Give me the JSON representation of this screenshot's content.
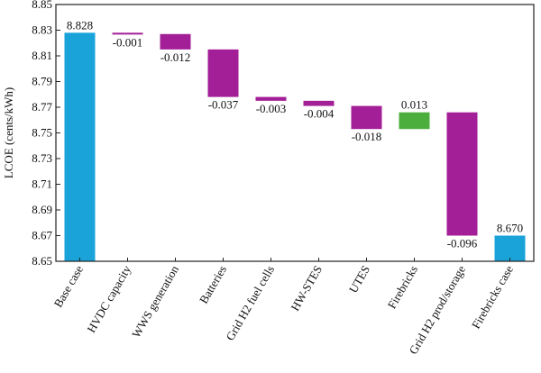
{
  "chart_data": {
    "type": "waterfall",
    "ylabel": "LCOE (cents/kWh)",
    "ylim": [
      8.65,
      8.85
    ],
    "yticks": [
      8.65,
      8.67,
      8.69,
      8.71,
      8.73,
      8.75,
      8.77,
      8.79,
      8.81,
      8.83,
      8.85
    ],
    "categories": [
      "Base case",
      "HVDC capacity",
      "WWS generation",
      "Batteries",
      "Grid H2 fuel cells",
      "HW-STES",
      "UTES",
      "Firebricks",
      "Grid H2 prod/storage",
      "Firebricks case"
    ],
    "values": [
      8.828,
      -0.001,
      -0.012,
      -0.037,
      -0.003,
      -0.004,
      -0.018,
      0.013,
      -0.096,
      8.67
    ],
    "value_labels": [
      "8.828",
      "-0.001",
      "-0.012",
      "-0.037",
      "-0.003",
      "-0.004",
      "-0.018",
      "0.013",
      "-0.096",
      "8.670"
    ],
    "bar_kinds": [
      "total",
      "step",
      "step",
      "step",
      "step",
      "step",
      "step",
      "step",
      "step",
      "total"
    ],
    "colors": {
      "total": "#1aa3d9",
      "decrease": "#a31f97",
      "increase": "#4cae3c",
      "axis": "#222222"
    },
    "grid": false,
    "legend": "none"
  }
}
